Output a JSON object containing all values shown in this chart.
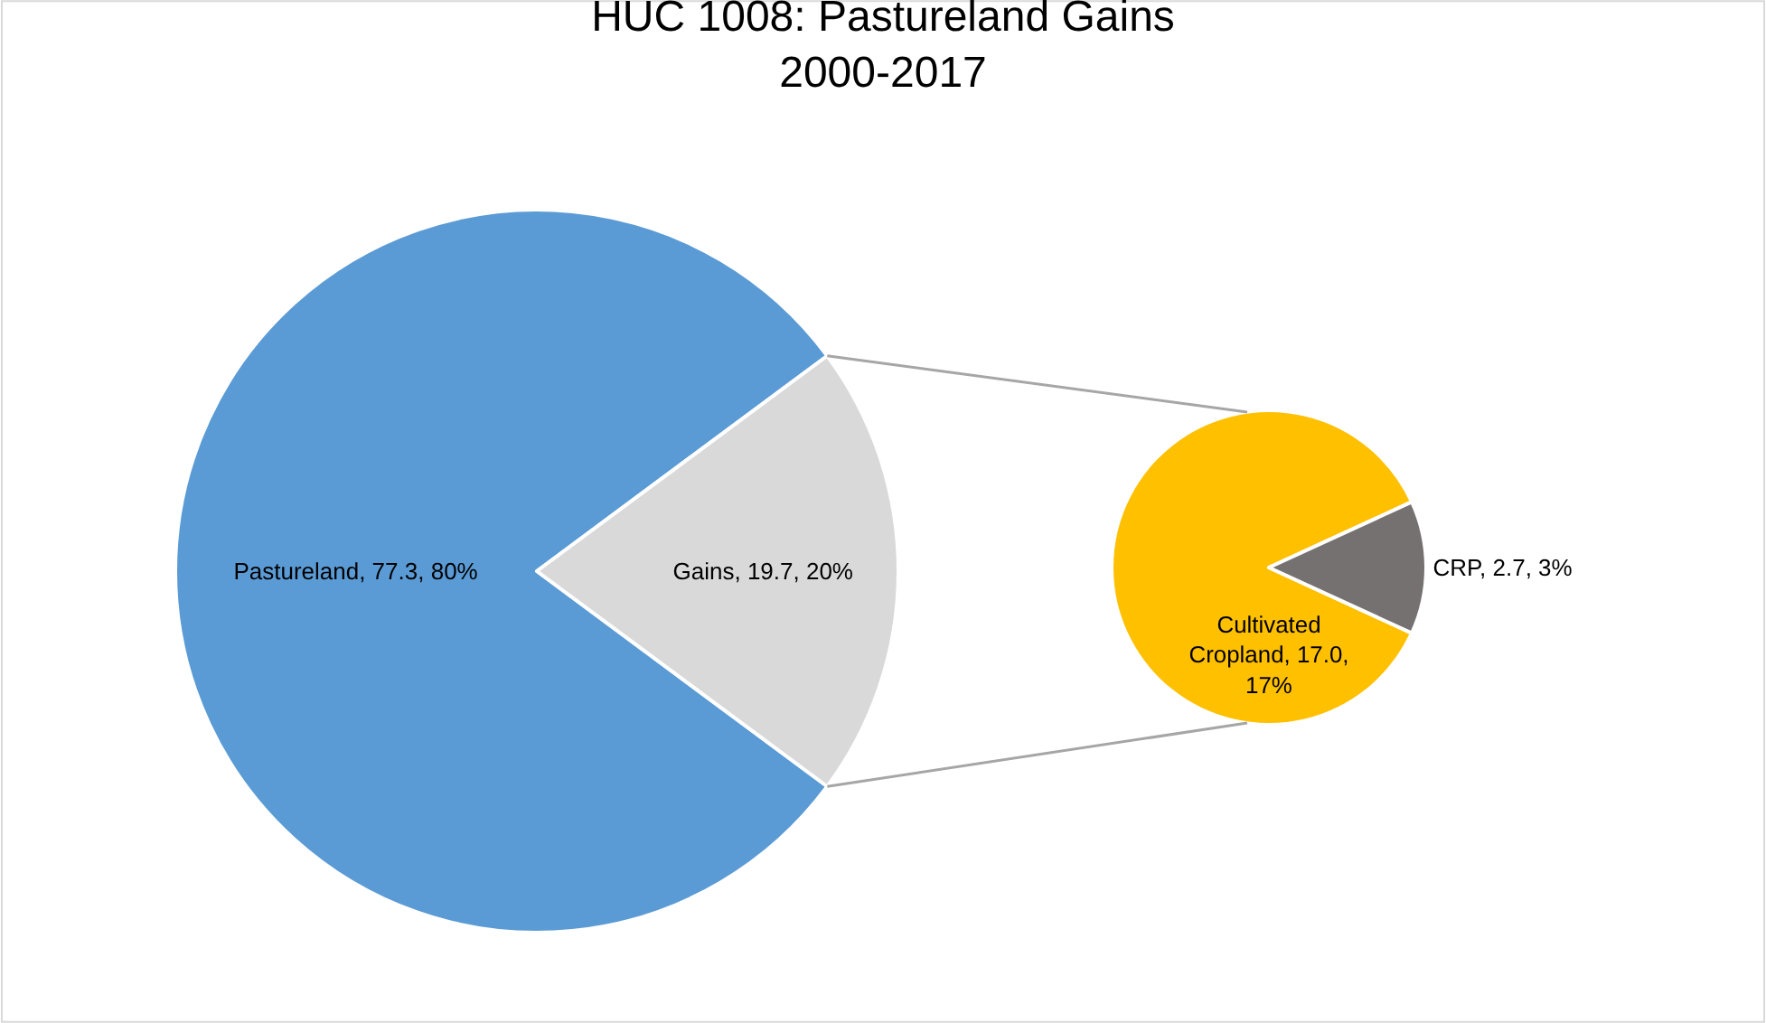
{
  "chart_data": [
    {
      "type": "pie",
      "title": "HUC 1008: Pastureland Gains\n2000-2017",
      "categories": [
        "Pastureland",
        "Gains"
      ],
      "values": [
        77.3,
        19.7
      ],
      "value_labels": [
        "77.3, 80%",
        "19.7, 20%"
      ],
      "colors": [
        "#5b9bd5",
        "#d9d9d9"
      ],
      "legend": false
    },
    {
      "type": "pie",
      "categories": [
        "Cultivated Cropland",
        "CRP"
      ],
      "values": [
        17.0,
        2.7
      ],
      "value_labels": [
        "17.0, 17%",
        "2.7, 3%"
      ],
      "colors": [
        "#ffc000",
        "#767171"
      ],
      "legend": false
    }
  ]
}
